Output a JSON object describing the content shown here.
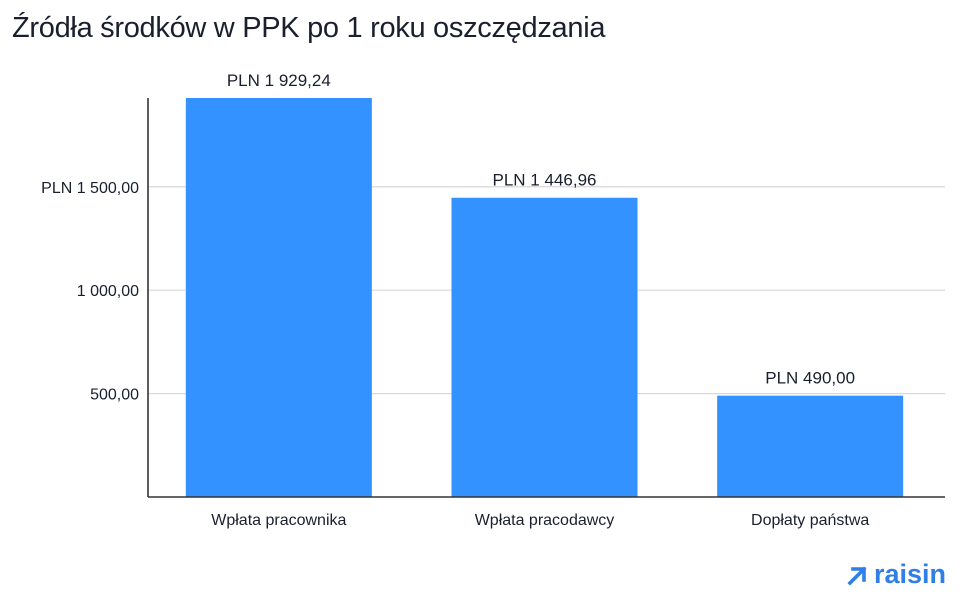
{
  "title": "Źródła środków w PPK po 1 roku oszczędzania",
  "brand": {
    "name": "raisin",
    "color": "#2f7fe6"
  },
  "chart_data": {
    "type": "bar",
    "categories": [
      "Wpłata pracownika",
      "Wpłata pracodawcy",
      "Dopłaty państwa"
    ],
    "values": [
      1929.24,
      1446.96,
      490.0
    ],
    "value_labels": [
      "PLN 1 929,24",
      "PLN 1 446,96",
      "PLN 490,00"
    ],
    "yticks": [
      500,
      1000,
      1500
    ],
    "ytick_labels": [
      "500,00",
      "1 000,00",
      "PLN 1 500,00"
    ],
    "ylim": [
      0,
      1929.24
    ],
    "grid": true,
    "bar_color": "#3392ff",
    "grid_color": "#d9d9d9",
    "axis_color": "#333333",
    "xlabel": "",
    "ylabel": ""
  }
}
